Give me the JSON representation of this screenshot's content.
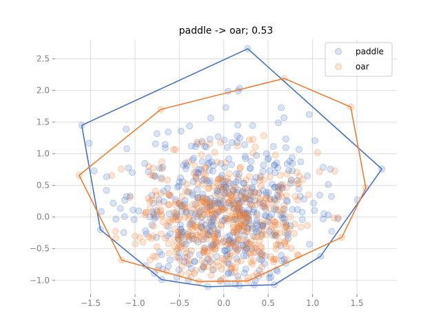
{
  "chart_data": {
    "type": "scatter",
    "title": "paddle -> oar; 0.53",
    "xlabel": "",
    "ylabel": "",
    "xlim": [
      -1.9,
      1.95
    ],
    "ylim": [
      -1.22,
      2.8
    ],
    "xticks": [
      -1.5,
      -1.0,
      -0.5,
      0.0,
      0.5,
      1.0,
      1.5
    ],
    "yticks": [
      -1.0,
      -0.5,
      0.0,
      0.5,
      1.0,
      1.5,
      2.0,
      2.5
    ],
    "xtick_labels": [
      "−1.5",
      "−1.0",
      "−0.5",
      "0.0",
      "0.5",
      "1.0",
      "1.5"
    ],
    "ytick_labels": [
      "−1.0",
      "−0.5",
      "0.0",
      "0.5",
      "1.0",
      "1.5",
      "2.0",
      "2.5"
    ],
    "grid": true,
    "legend_position": "top-right",
    "series": [
      {
        "name": "paddle",
        "color": "#4472c4",
        "point_count": 500,
        "center": [
          0.0,
          0.1
        ],
        "spread": [
          0.55,
          0.65
        ],
        "hull": [
          [
            0.27,
            2.66
          ],
          [
            1.78,
            0.76
          ],
          [
            1.09,
            -0.62
          ],
          [
            0.57,
            -1.07
          ],
          [
            -0.18,
            -1.1
          ],
          [
            -0.7,
            -0.99
          ],
          [
            -1.39,
            -0.2
          ],
          [
            -1.6,
            1.45
          ]
        ]
      },
      {
        "name": "oar",
        "color": "#ed7d31",
        "point_count": 500,
        "center": [
          0.0,
          -0.05
        ],
        "spread": [
          0.5,
          0.55
        ],
        "hull": [
          [
            0.68,
            2.19
          ],
          [
            1.43,
            1.74
          ],
          [
            1.6,
            0.46
          ],
          [
            1.33,
            -0.32
          ],
          [
            0.27,
            -1.01
          ],
          [
            -0.28,
            -1.02
          ],
          [
            -1.15,
            -0.68
          ],
          [
            -1.63,
            0.66
          ],
          [
            -0.71,
            1.7
          ]
        ]
      }
    ]
  }
}
